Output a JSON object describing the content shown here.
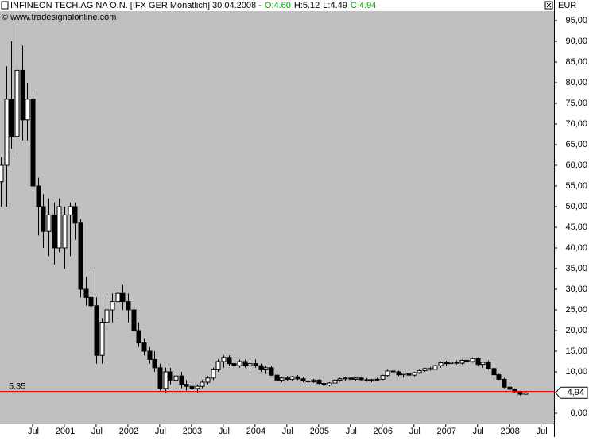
{
  "chart_data": {
    "type": "candlestick",
    "title": "INFINEON TECH.AG NA O.N. [IFX GER  Monatlich] 30.04.2008 -",
    "ohlc_labels": [
      "O:4.60",
      "H:5.12",
      "L:4.49",
      "C:4.94"
    ],
    "ohlc_label_color": "#00a000",
    "subtitle": "© www.tradesignalonline.com",
    "y_axis_label": "EUR",
    "x": [
      "2000-01",
      "2000-02",
      "2000-03",
      "2000-04",
      "2000-05",
      "2000-06",
      "2000-07",
      "2000-08",
      "2000-09",
      "2000-10",
      "2000-11",
      "2000-12",
      "2001-01",
      "2001-02",
      "2001-03",
      "2001-04",
      "2001-05",
      "2001-06",
      "2001-07",
      "2001-08",
      "2001-09",
      "2001-10",
      "2001-11",
      "2001-12",
      "2002-01",
      "2002-02",
      "2002-03",
      "2002-04",
      "2002-05",
      "2002-06",
      "2002-07",
      "2002-08",
      "2002-09",
      "2002-10",
      "2002-11",
      "2002-12",
      "2003-01",
      "2003-02",
      "2003-03",
      "2003-04",
      "2003-05",
      "2003-06",
      "2003-07",
      "2003-08",
      "2003-09",
      "2003-10",
      "2003-11",
      "2003-12",
      "2004-01",
      "2004-02",
      "2004-03",
      "2004-04",
      "2004-05",
      "2004-06",
      "2004-07",
      "2004-08",
      "2004-09",
      "2004-10",
      "2004-11",
      "2004-12",
      "2005-01",
      "2005-02",
      "2005-03",
      "2005-04",
      "2005-05",
      "2005-06",
      "2005-07",
      "2005-08",
      "2005-09",
      "2005-10",
      "2005-11",
      "2005-12",
      "2006-01",
      "2006-02",
      "2006-03",
      "2006-04",
      "2006-05",
      "2006-06",
      "2006-07",
      "2006-08",
      "2006-09",
      "2006-10",
      "2006-11",
      "2006-12",
      "2007-01",
      "2007-02",
      "2007-03",
      "2007-04",
      "2007-05",
      "2007-06",
      "2007-07",
      "2007-08",
      "2007-09",
      "2007-10",
      "2007-11",
      "2007-12",
      "2008-01",
      "2008-02",
      "2008-03",
      "2008-04"
    ],
    "open": [
      56,
      60,
      76,
      67,
      83,
      71,
      76,
      55,
      50,
      44,
      48,
      40,
      40,
      48,
      50,
      46,
      30,
      28,
      26,
      14,
      22,
      25,
      27,
      29,
      27,
      25,
      20,
      17,
      15,
      13,
      11,
      6,
      10,
      8,
      9,
      7,
      6.5,
      6,
      6.5,
      7.5,
      8.5,
      10.5,
      12.5,
      13.5,
      12,
      11.5,
      12.5,
      11.5,
      12,
      11.5,
      10.5,
      11,
      9.2,
      8,
      8.5,
      8.2,
      8.8,
      8.3,
      7.8,
      7.6,
      8,
      7.2,
      6.8,
      7.3,
      8,
      8.3,
      8.5,
      8.2,
      8.5,
      8.1,
      7.9,
      8.1,
      8.2,
      9.1,
      10.2,
      10,
      9.3,
      9.6,
      9.2,
      9.8,
      10.3,
      10.8,
      10.6,
      11.5,
      12.2,
      12,
      12.3,
      12.1,
      12.8,
      12.5,
      13.2,
      11.8,
      12.3,
      10.8,
      9.3,
      8.2,
      6.3,
      5.8,
      5.2,
      4.6
    ],
    "high": [
      62,
      84,
      90,
      94,
      89,
      80,
      78,
      57,
      53,
      52,
      51,
      52,
      50,
      51,
      51,
      47,
      33,
      34,
      28,
      23,
      29,
      29,
      30,
      31,
      29,
      26,
      22,
      18,
      16,
      15,
      12,
      11,
      11,
      10,
      10,
      8,
      7,
      7,
      8,
      9,
      11,
      13,
      14,
      14,
      13,
      13,
      13,
      12.5,
      13,
      12,
      11.5,
      11.5,
      9.5,
      8.8,
      9,
      9,
      9.2,
      8.8,
      8.2,
      8.3,
      8.2,
      7.5,
      7.5,
      8.2,
      8.6,
      8.8,
      8.8,
      8.7,
      8.7,
      8.5,
      8.3,
      8.5,
      9.3,
      10.5,
      10.8,
      10.3,
      9.8,
      10,
      10,
      10.5,
      11,
      11.2,
      11.7,
      12.5,
      12.7,
      12.5,
      12.8,
      13,
      13.2,
      13.5,
      13.5,
      12.5,
      12.8,
      11,
      9.6,
      8.5,
      6.8,
      6,
      5.4,
      5.12
    ],
    "low": [
      50,
      50,
      64,
      62,
      66,
      66,
      54,
      43,
      40,
      38,
      36,
      39,
      35,
      38,
      42,
      28,
      26,
      25,
      12,
      12,
      21,
      22,
      23,
      25,
      22,
      18,
      16,
      14,
      12,
      10,
      5.5,
      5,
      7,
      6,
      6,
      5.5,
      5,
      5,
      6,
      7,
      8,
      10,
      11,
      11.5,
      11,
      11,
      11,
      10.5,
      11,
      10,
      9.5,
      9,
      7.8,
      7.5,
      7.8,
      7.9,
      8,
      7.5,
      7.2,
      7.3,
      7,
      6.5,
      6.5,
      7,
      7.6,
      7.9,
      8,
      7.8,
      7.9,
      7.6,
      7.5,
      7.7,
      8,
      8.8,
      9.5,
      9,
      8.6,
      8.8,
      8.9,
      9.5,
      10,
      10.3,
      10.5,
      11,
      11.5,
      11.5,
      11.8,
      11.8,
      12,
      12.2,
      11.5,
      11,
      10.5,
      9,
      8,
      6,
      5.5,
      5,
      4.3,
      4.49
    ],
    "close": [
      60,
      76,
      67,
      83,
      71,
      76,
      55,
      50,
      44,
      48,
      40,
      50,
      48,
      50,
      46,
      30,
      28,
      26,
      14,
      22,
      25,
      27,
      29,
      27,
      25,
      20,
      17,
      15,
      13,
      11,
      6,
      10,
      8,
      9,
      7,
      6.5,
      6,
      6.5,
      7.5,
      8.5,
      10.5,
      12.5,
      13.5,
      12,
      11.5,
      12.5,
      11.5,
      12,
      11.5,
      10.5,
      11,
      9.2,
      8,
      8.5,
      8.2,
      8.8,
      8.3,
      7.8,
      7.6,
      8,
      7.2,
      6.8,
      7.3,
      8,
      8.3,
      8.5,
      8.2,
      8.5,
      8.1,
      7.9,
      8.1,
      8.2,
      9.1,
      10.2,
      10,
      9.3,
      9.6,
      9.2,
      9.8,
      10.3,
      10.8,
      10.6,
      11.5,
      12.2,
      12,
      12.3,
      12.1,
      12.8,
      12.5,
      13.2,
      11.8,
      12.3,
      10.8,
      9.3,
      8.2,
      6.3,
      5.8,
      5.2,
      4.6,
      4.94
    ],
    "up_color": "#ffffff",
    "down_color": "#000000",
    "xlim": [
      "2000-01",
      "2008-09"
    ],
    "xticks": [
      {
        "value": "2000-07",
        "label": "Jul"
      },
      {
        "value": "2001-01",
        "label": "2001"
      },
      {
        "value": "2001-07",
        "label": "Jul"
      },
      {
        "value": "2002-01",
        "label": "2002"
      },
      {
        "value": "2002-07",
        "label": "Jul"
      },
      {
        "value": "2003-01",
        "label": "2003"
      },
      {
        "value": "2003-07",
        "label": "Jul"
      },
      {
        "value": "2004-01",
        "label": "2004"
      },
      {
        "value": "2004-07",
        "label": "Jul"
      },
      {
        "value": "2005-01",
        "label": "2005"
      },
      {
        "value": "2005-07",
        "label": "Jul"
      },
      {
        "value": "2006-01",
        "label": "2006"
      },
      {
        "value": "2006-07",
        "label": "Jul"
      },
      {
        "value": "2007-01",
        "label": "2007"
      },
      {
        "value": "2007-07",
        "label": "Jul"
      },
      {
        "value": "2008-01",
        "label": "2008"
      },
      {
        "value": "2008-07",
        "label": "Jul"
      }
    ],
    "ylim": [
      -2.5,
      97.5
    ],
    "yticks": [
      {
        "value": 0,
        "label": "0,00"
      },
      {
        "value": 5,
        "label": "5,00"
      },
      {
        "value": 10,
        "label": "10,00"
      },
      {
        "value": 15,
        "label": "15,00"
      },
      {
        "value": 20,
        "label": "20,00"
      },
      {
        "value": 25,
        "label": "25,00"
      },
      {
        "value": 30,
        "label": "30,00"
      },
      {
        "value": 35,
        "label": "35,00"
      },
      {
        "value": 40,
        "label": "40,00"
      },
      {
        "value": 45,
        "label": "45,00"
      },
      {
        "value": 50,
        "label": "50,00"
      },
      {
        "value": 55,
        "label": "55,00"
      },
      {
        "value": 60,
        "label": "60,00"
      },
      {
        "value": 65,
        "label": "65,00"
      },
      {
        "value": 70,
        "label": "70,00"
      },
      {
        "value": 75,
        "label": "75,00"
      },
      {
        "value": 80,
        "label": "80,00"
      },
      {
        "value": 85,
        "label": "85,00"
      },
      {
        "value": 90,
        "label": "90,00"
      },
      {
        "value": 95,
        "label": "95,00"
      }
    ],
    "hline": {
      "value": 5.35,
      "label": "5.35",
      "color": "#ff0000"
    },
    "last_price": {
      "value": 4.94,
      "label": "4,94"
    },
    "plot_background": "#c0c0c0"
  }
}
